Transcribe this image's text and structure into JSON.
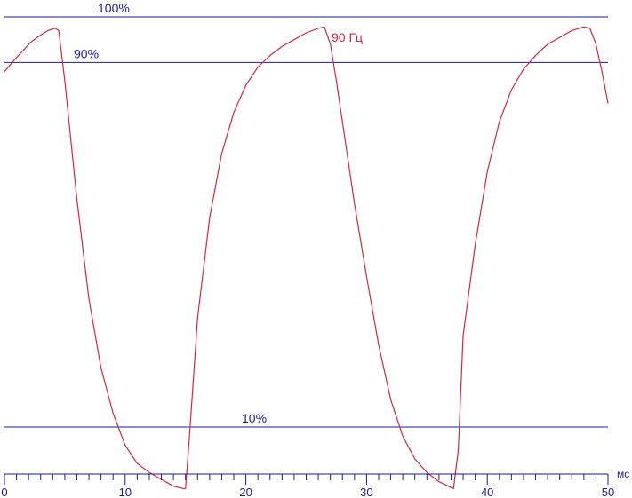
{
  "chart_data": {
    "type": "line",
    "title": "",
    "xlabel": "мс",
    "ylabel": "",
    "xlim": [
      0,
      50
    ],
    "ylim": [
      0,
      100
    ],
    "grid": false,
    "x_ticks": [
      "0",
      "10",
      "20",
      "30",
      "40",
      "50"
    ],
    "reference_lines": [
      {
        "label": "100%",
        "value": 100
      },
      {
        "label": "90%",
        "value": 90
      },
      {
        "label": "10%",
        "value": 10
      }
    ],
    "series": [
      {
        "name": "90 Гц",
        "x": [
          0,
          0.8,
          1.5,
          2.2,
          3.0,
          3.6,
          4.2,
          4.5,
          5.0,
          5.5,
          6.0,
          7.0,
          8.0,
          9.0,
          10.0,
          11.0,
          12.0,
          13.0,
          14.0,
          14.8,
          15.0,
          15.3,
          16.0,
          17.0,
          18.0,
          19.0,
          20.0,
          21.0,
          22.0,
          23.0,
          24.0,
          25.0,
          26.0,
          26.5,
          27.0,
          27.5,
          28.0,
          29.0,
          30.0,
          31.0,
          32.0,
          33.0,
          34.0,
          35.0,
          36.0,
          37.0,
          37.2,
          37.6,
          38.0,
          39.0,
          40.0,
          41.0,
          42.0,
          43.0,
          44.0,
          45.0,
          46.0,
          47.0,
          48.0,
          48.5,
          49.0,
          49.5,
          50.0
        ],
        "values": [
          88,
          90.5,
          92.5,
          94.5,
          96,
          97,
          97.5,
          97,
          86,
          73,
          60,
          38,
          23,
          13,
          6,
          2,
          0,
          -1.5,
          -3,
          -3.5,
          -3.5,
          7,
          34,
          56,
          70,
          79,
          85,
          89,
          91.5,
          93.5,
          95,
          96.5,
          97.5,
          97.8,
          94,
          86,
          77,
          59,
          43,
          28,
          16,
          8,
          3,
          0,
          -2,
          -3.3,
          -3.5,
          5,
          30,
          50,
          66,
          77,
          84,
          88.5,
          91.5,
          94,
          95.5,
          97,
          97.8,
          97.5,
          94,
          88,
          81
        ]
      }
    ]
  }
}
